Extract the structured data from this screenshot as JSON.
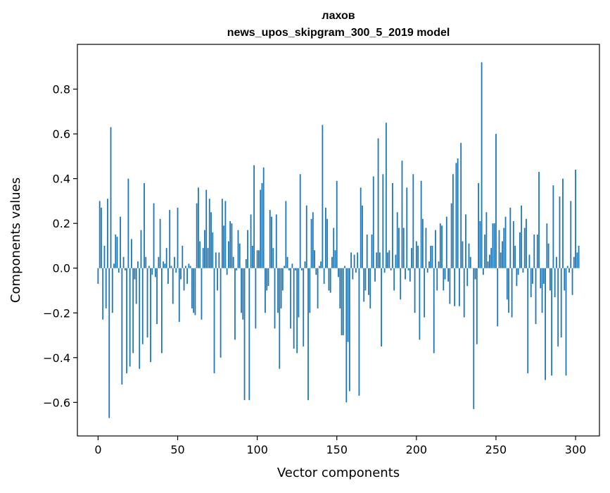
{
  "chart_data": {
    "type": "bar",
    "title": "лахов",
    "subtitle": "news_upos_skipgram_300_5_2019 model",
    "xlabel": "Vector components",
    "ylabel": "Components values",
    "xlim": [
      -13,
      315
    ],
    "ylim": [
      -0.75,
      1.0
    ],
    "xticks": [
      0,
      50,
      100,
      150,
      200,
      250,
      300
    ],
    "xtick_labels": [
      "0",
      "50",
      "100",
      "150",
      "200",
      "250",
      "300"
    ],
    "yticks": [
      -0.6,
      -0.4,
      -0.2,
      0.0,
      0.2,
      0.4,
      0.6,
      0.8
    ],
    "ytick_labels": [
      "−0.6",
      "−0.4",
      "−0.2",
      "0.0",
      "0.2",
      "0.4",
      "0.6",
      "0.8"
    ],
    "grid": false,
    "bar_color": "#1f77b4",
    "x_start": 0,
    "values": [
      -0.07,
      0.3,
      0.27,
      -0.23,
      0.1,
      -0.18,
      0.31,
      -0.67,
      0.63,
      -0.2,
      0.02,
      0.15,
      0.14,
      -0.02,
      0.23,
      -0.52,
      0.05,
      -0.01,
      -0.47,
      0.4,
      -0.44,
      0.13,
      -0.38,
      -0.05,
      -0.16,
      0.03,
      -0.45,
      0.17,
      -0.34,
      0.38,
      0.05,
      -0.31,
      0.01,
      -0.42,
      -0.03,
      0.29,
      -0.04,
      -0.25,
      0.05,
      0.22,
      -0.38,
      0.03,
      0.02,
      0.09,
      -0.07,
      0.26,
      0.01,
      -0.16,
      0.05,
      -0.02,
      0.27,
      -0.24,
      -0.05,
      0.1,
      -0.1,
      0.01,
      -0.07,
      0.02,
      0.01,
      -0.18,
      -0.2,
      -0.21,
      0.29,
      0.36,
      0.12,
      -0.23,
      0.09,
      0.17,
      0.35,
      0.09,
      0.31,
      0.25,
      0.16,
      -0.47,
      0.07,
      -0.1,
      0.07,
      -0.4,
      0.31,
      0.19,
      0.3,
      -0.03,
      0.12,
      0.21,
      0.2,
      0.05,
      -0.32,
      -0.01,
      0.17,
      0.11,
      -0.2,
      -0.23,
      -0.59,
      0.04,
      0.17,
      -0.59,
      0.24,
      0.1,
      0.46,
      -0.27,
      0.08,
      0.08,
      0.35,
      0.38,
      0.45,
      -0.2,
      -0.1,
      -0.08,
      0.26,
      0.23,
      0.09,
      -0.27,
      0.24,
      -0.2,
      -0.45,
      -0.18,
      -0.1,
      0.01,
      0.3,
      0.05,
      -0.01,
      -0.27,
      0.02,
      -0.36,
      -0.01,
      -0.38,
      -0.22,
      0.42,
      -0.01,
      -0.35,
      0.03,
      0.28,
      -0.59,
      -0.2,
      0.22,
      0.25,
      0.08,
      -0.03,
      -0.18,
      0.01,
      0.03,
      0.64,
      -0.07,
      0.27,
      0.22,
      -0.1,
      -0.11,
      0.05,
      0.18,
      0.08,
      0.39,
      -0.04,
      -0.18,
      -0.3,
      -0.3,
      0.01,
      -0.6,
      -0.33,
      -0.55,
      0.07,
      -0.05,
      0.06,
      -0.02,
      0.07,
      -0.57,
      0.36,
      0.28,
      -0.15,
      -0.1,
      0.15,
      -0.12,
      -0.18,
      0.15,
      0.41,
      -0.06,
      0.07,
      0.58,
      0.07,
      -0.35,
      0.42,
      -0.02,
      0.65,
      0.07,
      0.08,
      -0.01,
      0.38,
      -0.1,
      0.06,
      0.25,
      0.18,
      -0.14,
      0.48,
      0.18,
      -0.05,
      0.36,
      -0.01,
      -0.06,
      0.09,
      0.42,
      -0.2,
      0.12,
      0.1,
      -0.32,
      0.39,
      0.22,
      -0.22,
      0.18,
      -0.02,
      0.03,
      0.1,
      0.1,
      -0.38,
      0.17,
      -0.1,
      0.03,
      0.2,
      0.19,
      -0.1,
      -0.05,
      0.23,
      -0.06,
      -0.16,
      0.29,
      0.42,
      -0.17,
      0.47,
      0.49,
      -0.17,
      0.56,
      0.12,
      -0.22,
      0.24,
      -0.08,
      0.11,
      0.05,
      0.0,
      -0.63,
      -0.05,
      -0.34,
      0.38,
      0.21,
      0.92,
      -0.03,
      0.15,
      0.25,
      0.03,
      0.06,
      0.09,
      0.2,
      0.2,
      0.6,
      -0.26,
      0.17,
      0.07,
      0.12,
      0.18,
      0.23,
      -0.14,
      -0.2,
      0.27,
      -0.22,
      0.21,
      0.1,
      -0.08,
      -0.03,
      0.16,
      0.28,
      -0.02,
      0.18,
      0.22,
      -0.47,
      0.06,
      -0.13,
      -0.07,
      0.15,
      -0.25,
      0.15,
      0.43,
      -0.09,
      -0.2,
      -0.07,
      -0.5,
      0.2,
      0.11,
      -0.1,
      -0.48,
      0.37,
      -0.13,
      0.05,
      -0.35,
      0.32,
      -0.31,
      0.4,
      -0.1,
      -0.48,
      0.01,
      -0.02,
      0.3,
      -0.12,
      0.05,
      0.44,
      0.07,
      0.1
    ]
  }
}
